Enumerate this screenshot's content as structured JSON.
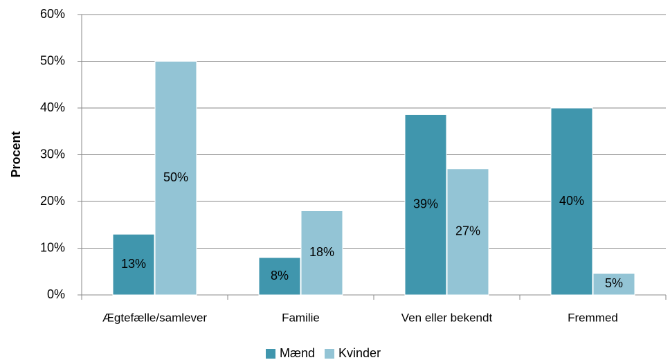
{
  "chart_data": {
    "type": "bar",
    "y_label": "Procent",
    "categories": [
      "Ægtefælle/samlever",
      "Familie",
      "Ven eller bekendt",
      "Fremmed"
    ],
    "series": [
      {
        "name": "Mænd",
        "color": "#4096ad",
        "values": [
          13,
          8,
          38.6,
          40
        ],
        "value_labels": [
          "13%",
          "8%",
          "39%",
          "40%"
        ]
      },
      {
        "name": "Kvinder",
        "color": "#93c4d5",
        "values": [
          50,
          18,
          27,
          4.6
        ],
        "value_labels": [
          "50%",
          "18%",
          "27%",
          "5%"
        ]
      }
    ],
    "ylim": [
      0,
      60
    ],
    "yticks": [
      {
        "value": 0,
        "label": "0%"
      },
      {
        "value": 10,
        "label": "10%"
      },
      {
        "value": 20,
        "label": "20%"
      },
      {
        "value": 30,
        "label": "30%"
      },
      {
        "value": 40,
        "label": "40%"
      },
      {
        "value": 50,
        "label": "50%"
      },
      {
        "value": 60,
        "label": "60%"
      }
    ],
    "grid": true,
    "legend": "bottom"
  }
}
